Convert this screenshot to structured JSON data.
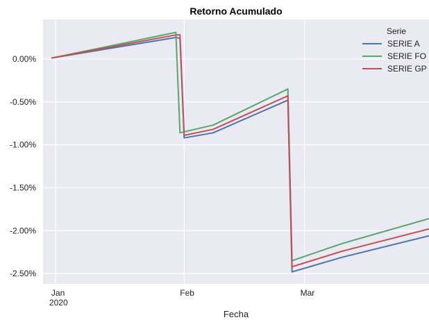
{
  "chart_data": {
    "type": "line",
    "title": "Retorno Acumulado",
    "xlabel": "Fecha",
    "ylabel": "",
    "x_ticks": [
      {
        "date": "2020-01-01",
        "label": "Jan",
        "sublabel": "2020"
      },
      {
        "date": "2020-02-01",
        "label": "Feb",
        "sublabel": ""
      },
      {
        "date": "2020-03-01",
        "label": "Mar",
        "sublabel": ""
      }
    ],
    "y_ticks": [
      0.0,
      -0.5,
      -1.0,
      -1.5,
      -2.0,
      -2.5
    ],
    "y_tick_labels": [
      "0.00%",
      "-0.50%",
      "-1.00%",
      "-1.50%",
      "-2.00%",
      "-2.50%"
    ],
    "xlim": [
      "2019-12-29",
      "2020-03-31"
    ],
    "ylim": [
      -2.62,
      0.46
    ],
    "grid": true,
    "legend_title": "Serie",
    "legend_position": "top-right",
    "series": [
      {
        "name": "SERIE A",
        "color": "#4c72b0",
        "points": [
          {
            "x": "2019-12-31",
            "y": 0.01
          },
          {
            "x": "2020-01-30",
            "y": 0.25
          },
          {
            "x": "2020-01-31",
            "y": 0.24
          },
          {
            "x": "2020-02-01",
            "y": -0.92
          },
          {
            "x": "2020-02-08",
            "y": -0.86
          },
          {
            "x": "2020-02-26",
            "y": -0.48
          },
          {
            "x": "2020-02-27",
            "y": -2.48
          },
          {
            "x": "2020-03-10",
            "y": -2.31
          },
          {
            "x": "2020-03-31",
            "y": -2.06
          }
        ]
      },
      {
        "name": "SERIE FO",
        "color": "#55a868",
        "points": [
          {
            "x": "2019-12-31",
            "y": 0.01
          },
          {
            "x": "2020-01-30",
            "y": 0.31
          },
          {
            "x": "2020-01-31",
            "y": -0.86
          },
          {
            "x": "2020-02-08",
            "y": -0.77
          },
          {
            "x": "2020-02-26",
            "y": -0.35
          },
          {
            "x": "2020-02-27",
            "y": -2.35
          },
          {
            "x": "2020-03-10",
            "y": -2.15
          },
          {
            "x": "2020-03-31",
            "y": -1.86
          }
        ]
      },
      {
        "name": "SERIE GP",
        "color": "#c44e52",
        "points": [
          {
            "x": "2019-12-31",
            "y": 0.01
          },
          {
            "x": "2020-01-30",
            "y": 0.28
          },
          {
            "x": "2020-01-31",
            "y": 0.28
          },
          {
            "x": "2020-02-01",
            "y": -0.89
          },
          {
            "x": "2020-02-08",
            "y": -0.82
          },
          {
            "x": "2020-02-26",
            "y": -0.43
          },
          {
            "x": "2020-02-27",
            "y": -2.42
          },
          {
            "x": "2020-03-10",
            "y": -2.24
          },
          {
            "x": "2020-03-31",
            "y": -1.98
          }
        ]
      }
    ]
  }
}
